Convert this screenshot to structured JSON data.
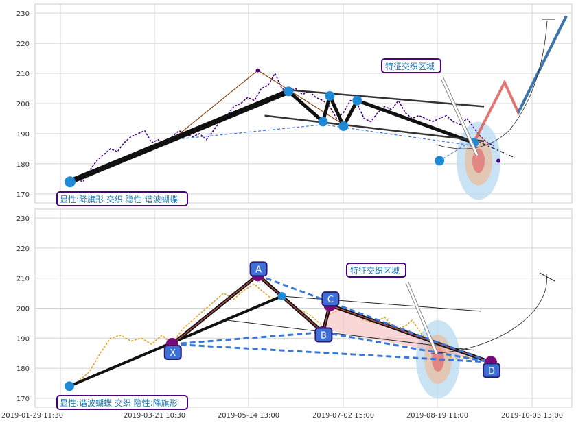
{
  "chart_data": [
    {
      "type": "line",
      "panel": "top",
      "y_ticks": [
        "170",
        "180",
        "190",
        "200",
        "210",
        "220",
        "230"
      ],
      "ylim": [
        167,
        233
      ],
      "grid": true,
      "annotations": {
        "pattern_label": "显性:降旗形 交织 隐性:谐波蝴蝶",
        "zone_label": "特征交织区域"
      },
      "colors": {
        "price": "#4b0082",
        "pattern": "#000000",
        "dashed": "#3a78d8",
        "zone_outer": "#bcdcf2",
        "zone_mid": "#e6c3a8",
        "zone_inner": "#e07a7a",
        "projection_red": "#d9534f",
        "projection_blue": "#1f77b4",
        "label_border": "#4b0082"
      },
      "series": [
        {
          "values": [
            [
              0,
              173
            ],
            [
              4,
              175
            ],
            [
              8,
              174
            ],
            [
              12,
              178
            ],
            [
              16,
              181
            ],
            [
              20,
              183
            ],
            [
              24,
              185
            ],
            [
              28,
              184
            ],
            [
              32,
              187
            ],
            [
              36,
              189
            ],
            [
              40,
              190
            ],
            [
              44,
              191
            ],
            [
              48,
              187
            ],
            [
              52,
              188
            ],
            [
              56,
              186
            ],
            [
              60,
              189
            ],
            [
              64,
              191
            ],
            [
              68,
              190
            ],
            [
              72,
              189
            ],
            [
              76,
              190
            ],
            [
              80,
              188
            ],
            [
              84,
              191
            ],
            [
              88,
              194
            ],
            [
              92,
              196
            ],
            [
              96,
              199
            ],
            [
              100,
              200
            ],
            [
              104,
              202
            ],
            [
              108,
              201
            ],
            [
              112,
              205
            ],
            [
              116,
              206
            ],
            [
              120,
              210
            ],
            [
              124,
              205
            ],
            [
              128,
              204
            ],
            [
              132,
              205
            ],
            [
              136,
              203
            ],
            [
              140,
              204
            ],
            [
              144,
              202
            ],
            [
              148,
              201
            ],
            [
              152,
              199
            ],
            [
              156,
              195
            ],
            [
              160,
              197
            ],
            [
              164,
              201
            ],
            [
              168,
              200
            ],
            [
              172,
              195
            ],
            [
              176,
              194
            ],
            [
              180,
              197
            ],
            [
              184,
              199
            ],
            [
              188,
              198
            ],
            [
              192,
              201
            ],
            [
              196,
              197
            ],
            [
              200,
              195
            ],
            [
              204,
              196
            ],
            [
              208,
              195
            ],
            [
              212,
              194
            ],
            [
              216,
              195
            ],
            [
              220,
              196
            ],
            [
              224,
              194
            ],
            [
              228,
              193
            ],
            [
              232,
              195
            ],
            [
              236,
              192
            ],
            [
              240,
              189
            ],
            [
              244,
              187
            ],
            [
              248,
              186
            ]
          ]
        }
      ],
      "points": [
        [
          0,
          174
        ],
        [
          128,
          204
        ],
        [
          148,
          194
        ],
        [
          152,
          202.5
        ],
        [
          160,
          192.5
        ],
        [
          168,
          201
        ],
        [
          236,
          187
        ],
        [
          216,
          181
        ]
      ],
      "flag_lines": [
        [
          [
            0,
            174
          ],
          [
            128,
            204
          ]
        ],
        [
          [
            128,
            204
          ],
          [
            148,
            194
          ]
        ],
        [
          [
            148,
            194
          ],
          [
            152,
            202.5
          ]
        ],
        [
          [
            152,
            202.5
          ],
          [
            160,
            192.5
          ]
        ],
        [
          [
            160,
            192.5
          ],
          [
            168,
            201
          ]
        ],
        [
          [
            168,
            201
          ],
          [
            236,
            187
          ]
        ]
      ]
    },
    {
      "type": "line",
      "panel": "bottom",
      "x_ticks": [
        "2019-01-29 11:30",
        "2019-03-21 10:30",
        "2019-05-14 13:00",
        "2019-07-02 15:00",
        "2019-08-19 11:00",
        "2019-10-03 13:00"
      ],
      "y_ticks": [
        "170",
        "180",
        "190",
        "200",
        "210",
        "220",
        "230"
      ],
      "ylim": [
        167,
        233
      ],
      "grid": true,
      "annotations": {
        "pattern_label": "显性:谐波蝴蝶 交织 隐性:降旗形",
        "zone_label": "特征交织区域"
      },
      "harmonic_points": [
        {
          "label": "X",
          "x": 60,
          "y": 188
        },
        {
          "label": "A",
          "x": 110,
          "y": 211
        },
        {
          "label": "B",
          "x": 148,
          "y": 192
        },
        {
          "label": "C",
          "x": 152,
          "y": 201
        },
        {
          "label": "D",
          "x": 246,
          "y": 182
        }
      ],
      "series": [
        {
          "values": [
            [
              0,
              173
            ],
            [
              6,
              176
            ],
            [
              12,
              179
            ],
            [
              18,
              185
            ],
            [
              24,
              190
            ],
            [
              30,
              191
            ],
            [
              36,
              189
            ],
            [
              42,
              190
            ],
            [
              48,
              188
            ],
            [
              54,
              191
            ],
            [
              60,
              188
            ],
            [
              66,
              193
            ],
            [
              72,
              196
            ],
            [
              78,
              199
            ],
            [
              84,
              202
            ],
            [
              90,
              205
            ],
            [
              96,
              203
            ],
            [
              102,
              206
            ],
            [
              108,
              208
            ],
            [
              112,
              206
            ],
            [
              116,
              204
            ],
            [
              120,
              203
            ],
            [
              124,
              204
            ],
            [
              130,
              201
            ],
            [
              136,
              199
            ],
            [
              140,
              198
            ],
            [
              144,
              196
            ],
            [
              148,
              194
            ],
            [
              152,
              198
            ],
            [
              156,
              199
            ],
            [
              160,
              200
            ],
            [
              166,
              198
            ],
            [
              172,
              196
            ],
            [
              178,
              195
            ],
            [
              184,
              197
            ],
            [
              190,
              193
            ],
            [
              196,
              194
            ],
            [
              200,
              196
            ],
            [
              206,
              191
            ],
            [
              212,
              188
            ],
            [
              218,
              186
            ],
            [
              224,
              183
            ],
            [
              230,
              184
            ],
            [
              236,
              183
            ],
            [
              240,
              183
            ]
          ]
        }
      ],
      "color_price": "#e8a41c"
    }
  ]
}
